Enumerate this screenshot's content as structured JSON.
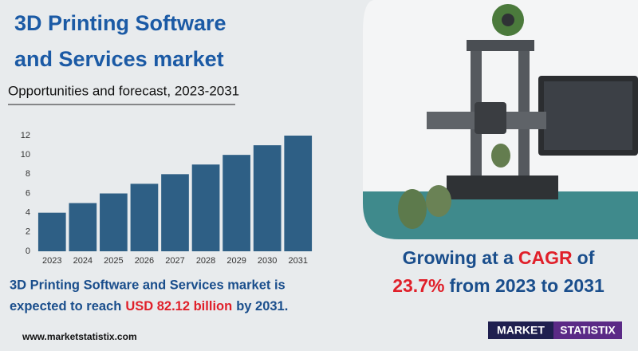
{
  "title": [
    "3D Printing Software",
    "and Services market"
  ],
  "subtitle": "Opportunities and forecast, 2023-2031",
  "summary": [
    "3D Printing Software and Services market is",
    "expected to reach",
    "USD 82.12 billion",
    "by 2031."
  ],
  "growth": [
    "Growing at a",
    "CAGR",
    "of",
    "23.7%",
    "from 2023 to 2031"
  ],
  "website": "www.marketstatistix.com",
  "logo": [
    "MARKET",
    "STATISTIX"
  ],
  "chart_data": {
    "type": "bar",
    "categories": [
      "2023",
      "2024",
      "2025",
      "2026",
      "2027",
      "2028",
      "2029",
      "2030",
      "2031"
    ],
    "values": [
      4,
      5,
      6,
      7,
      8,
      9,
      10,
      11,
      12
    ],
    "color": "#2e5f85",
    "ylim": [
      0,
      12
    ],
    "yticks": [
      0,
      2,
      4,
      6,
      8,
      10,
      12
    ],
    "grid": false
  }
}
